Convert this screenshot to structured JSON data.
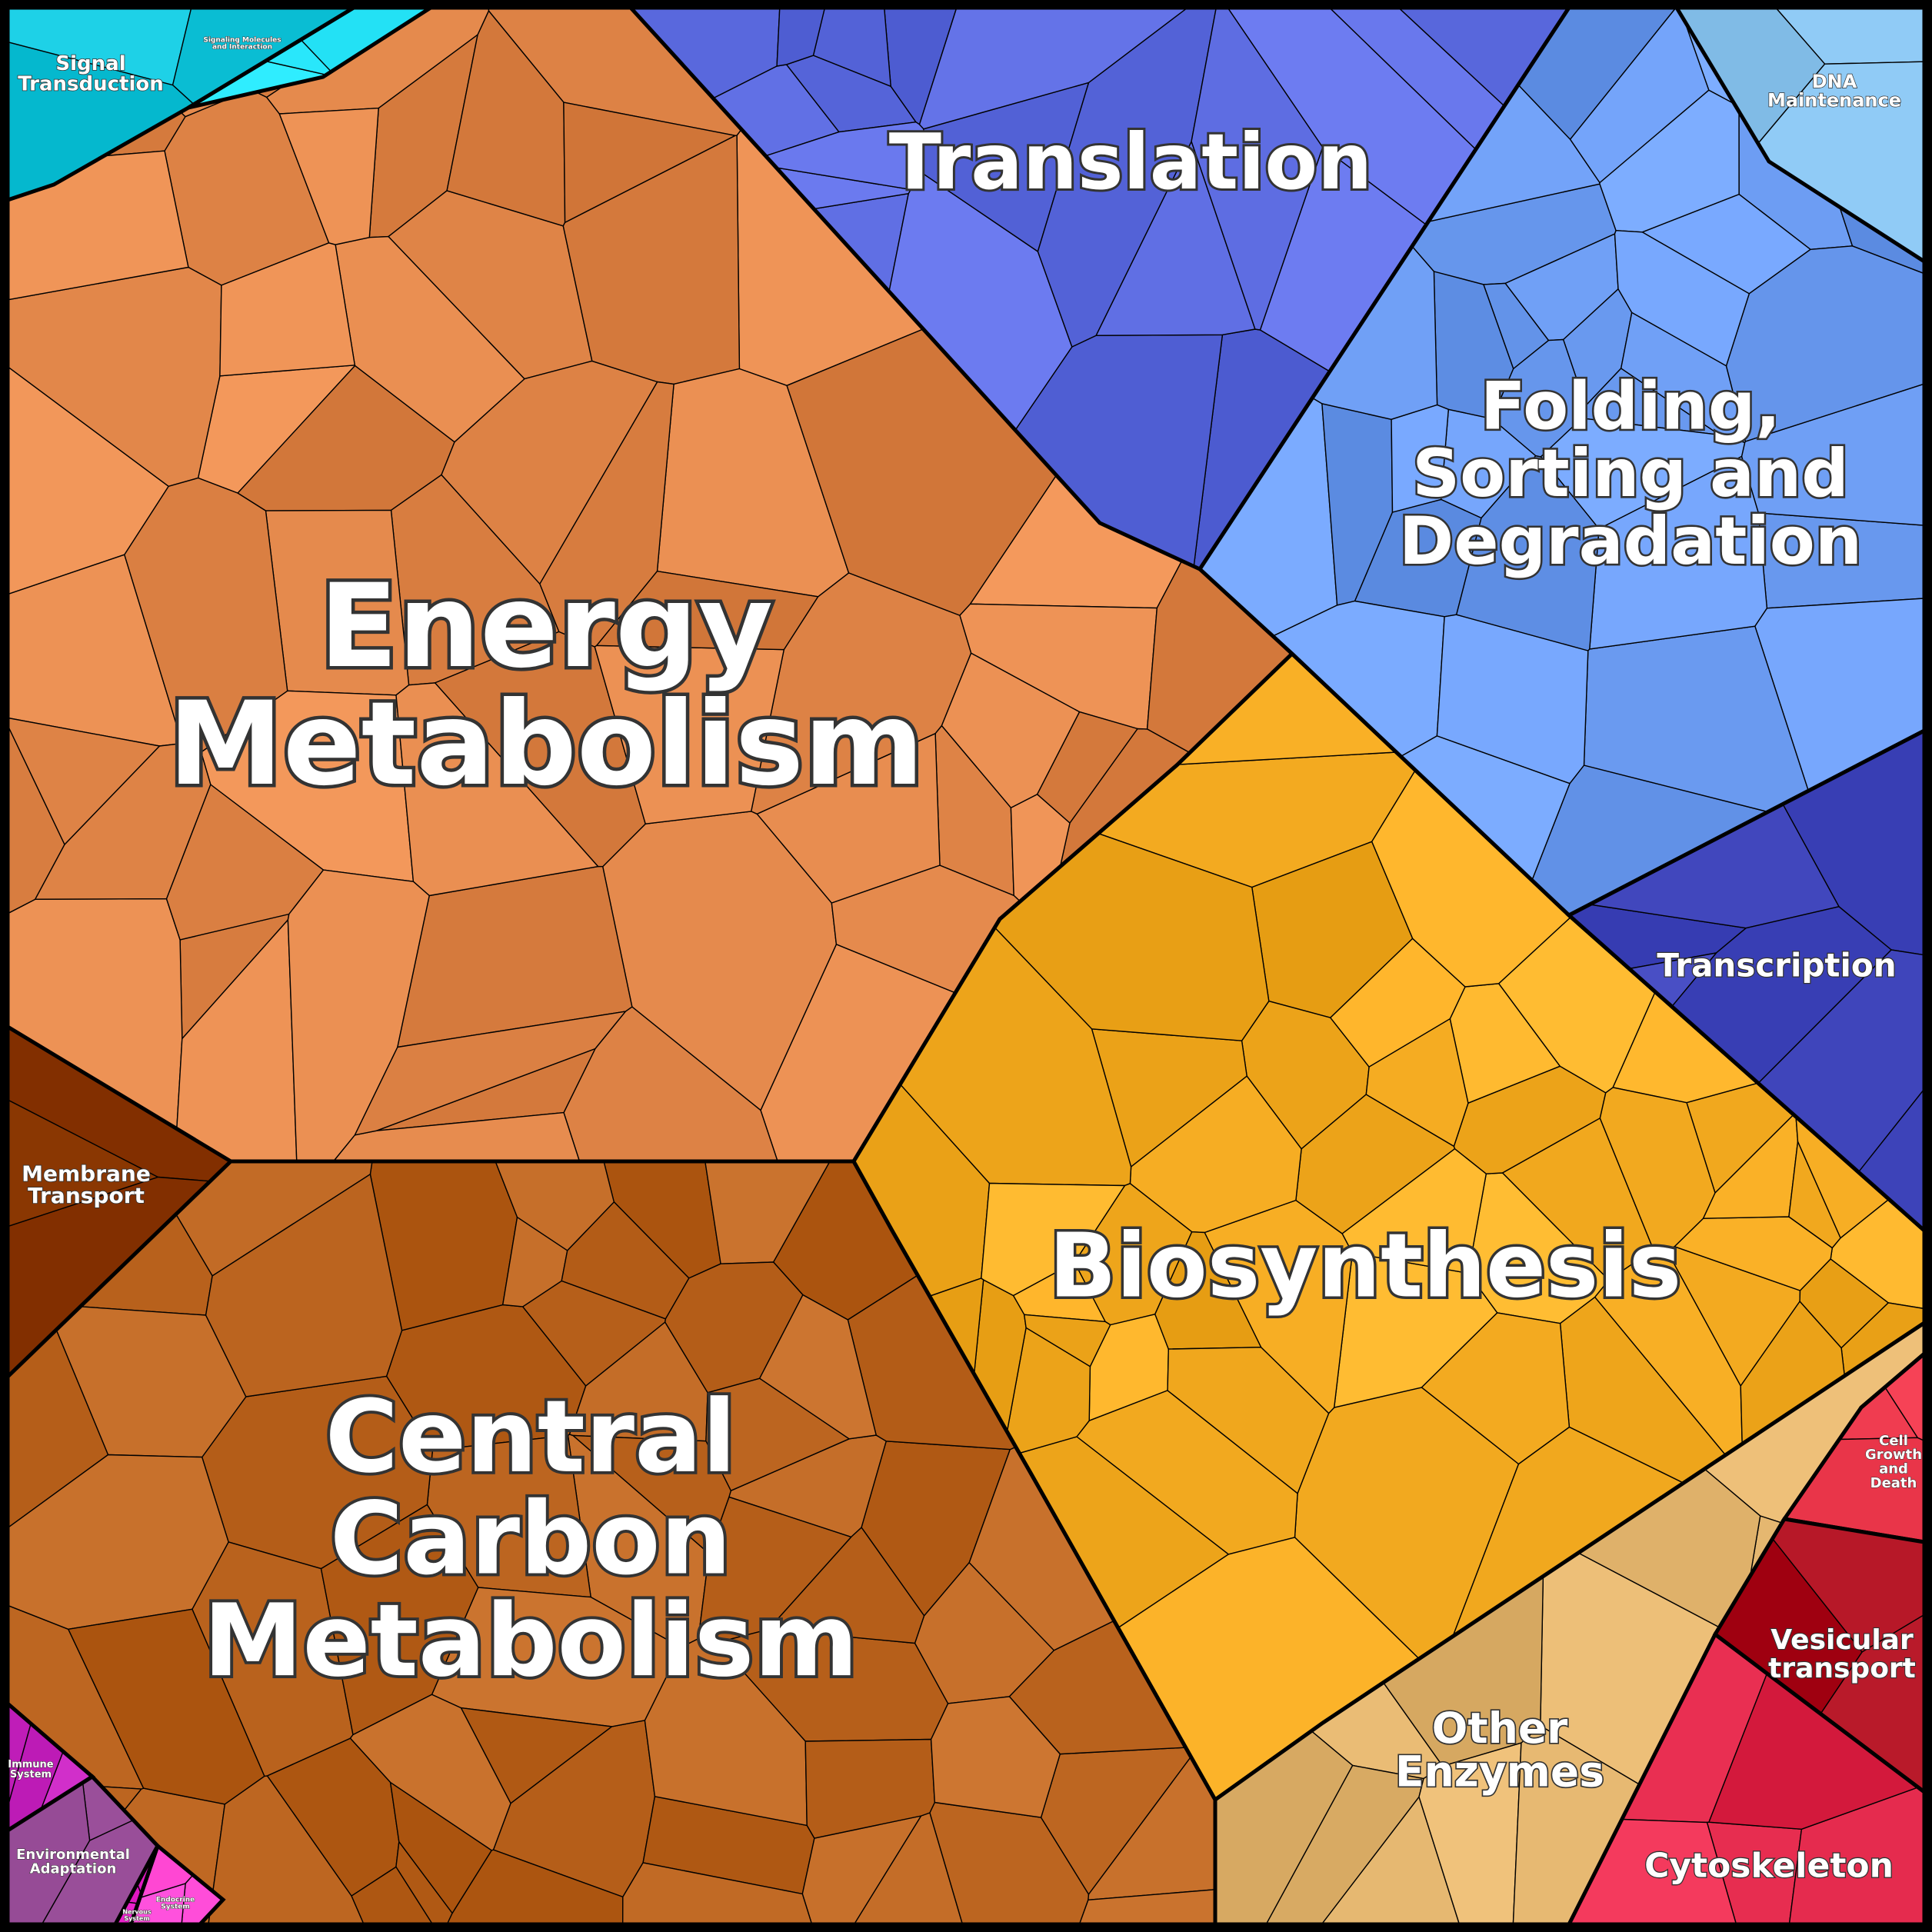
{
  "chart_data": {
    "type": "voronoi-treemap",
    "title": "",
    "categories": [
      {
        "key": "energy",
        "label": "Energy Metabolism",
        "color": "#E2874A"
      },
      {
        "key": "central",
        "label": "Central Carbon Metabolism",
        "color": "#BC6520"
      },
      {
        "key": "biosynthesis",
        "label": "Biosynthesis",
        "color": "#F5AC22"
      },
      {
        "key": "translation",
        "label": "Translation",
        "color": "#5C6BE0"
      },
      {
        "key": "folding",
        "label": "Folding, Sorting and Degradation",
        "color": "#6C9CF2"
      },
      {
        "key": "transcription",
        "label": "Transcription",
        "color": "#4248BE"
      },
      {
        "key": "other_enzymes",
        "label": "Other Enzymes",
        "color": "#E3B56E"
      },
      {
        "key": "cytoskeleton",
        "label": "Cytoskeleton",
        "color": "#E2284B"
      },
      {
        "key": "vesicular",
        "label": "Vesicular transport",
        "color": "#B11222"
      },
      {
        "key": "cell_growth",
        "label": "Cell Growth and Death",
        "color": "#F03C50"
      },
      {
        "key": "membrane",
        "label": "Membrane Transport",
        "color": "#8E3B06"
      },
      {
        "key": "signal",
        "label": "Signal Transduction",
        "color": "#12C5DB"
      },
      {
        "key": "signaling_mol",
        "label": "Signaling Molecules and Interaction",
        "color": "#1EDCF0"
      },
      {
        "key": "dna",
        "label": "DNA Maintenance",
        "color": "#8CC7F2"
      },
      {
        "key": "immune",
        "label": "Immune System",
        "color": "#C01EB9"
      },
      {
        "key": "environmental",
        "label": "Environmental Adaptation",
        "color": "#A55AA5"
      },
      {
        "key": "nervous",
        "label": "Nervous System",
        "color": "#E61EC8"
      },
      {
        "key": "endocrine",
        "label": "Endocrine System",
        "color": "#FF46D2"
      }
    ]
  }
}
